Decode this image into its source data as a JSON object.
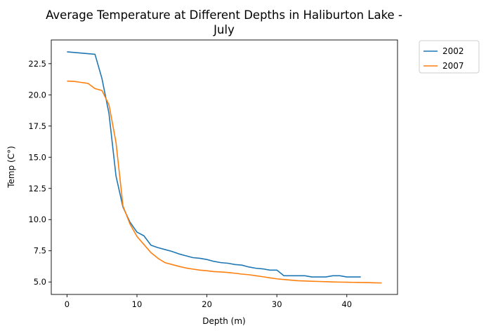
{
  "chart_data": {
    "type": "line",
    "title_line1": "Average Temperature at Different Depths in Haliburton Lake -",
    "title_line2": "July",
    "xlabel": "Depth (m)",
    "ylabel": "Temp (C°)",
    "xlim": [
      -2.25,
      47.25
    ],
    "ylim": [
      4.0,
      24.4
    ],
    "xticks": [
      0,
      10,
      20,
      30,
      40
    ],
    "yticks": [
      5.0,
      7.5,
      10.0,
      12.5,
      15.0,
      17.5,
      20.0,
      22.5
    ],
    "ytick_labels": [
      "5.0",
      "7.5",
      "10.0",
      "12.5",
      "15.0",
      "17.5",
      "20.0",
      "22.5"
    ],
    "legend_position": "outside top-right",
    "series": [
      {
        "name": "2002",
        "color": "#1f77b4",
        "x": [
          0,
          1,
          2,
          3,
          4,
          5,
          6,
          7,
          8,
          9,
          10,
          11,
          12,
          13,
          14,
          15,
          16,
          17,
          18,
          19,
          20,
          21,
          22,
          23,
          24,
          25,
          26,
          27,
          28,
          29,
          30,
          31,
          32,
          33,
          34,
          35,
          36,
          37,
          38,
          39,
          40,
          41,
          42
        ],
        "y": [
          23.45,
          23.4,
          23.35,
          23.3,
          23.25,
          21.3,
          18.5,
          13.5,
          11.0,
          9.8,
          9.0,
          8.7,
          7.95,
          7.75,
          7.6,
          7.45,
          7.25,
          7.1,
          6.95,
          6.9,
          6.8,
          6.65,
          6.55,
          6.5,
          6.4,
          6.35,
          6.2,
          6.1,
          6.05,
          5.95,
          5.95,
          5.5,
          5.5,
          5.5,
          5.5,
          5.4,
          5.4,
          5.4,
          5.5,
          5.5,
          5.4,
          5.4,
          5.4
        ]
      },
      {
        "name": "2007",
        "color": "#ff7f0e",
        "x": [
          0,
          1,
          2,
          3,
          4,
          5,
          6,
          7,
          8,
          9,
          10,
          11,
          12,
          13,
          14,
          15,
          16,
          17,
          18,
          19,
          20,
          21,
          22,
          23,
          24,
          25,
          26,
          27,
          28,
          29,
          30,
          31,
          32,
          33,
          34,
          35,
          36,
          37,
          38,
          39,
          40,
          41,
          42,
          43,
          44,
          45
        ],
        "y": [
          21.1,
          21.08,
          21.0,
          20.92,
          20.5,
          20.35,
          19.2,
          16.2,
          11.1,
          9.65,
          8.65,
          8.0,
          7.35,
          6.9,
          6.55,
          6.4,
          6.25,
          6.12,
          6.03,
          5.95,
          5.9,
          5.83,
          5.8,
          5.76,
          5.7,
          5.63,
          5.58,
          5.5,
          5.42,
          5.33,
          5.25,
          5.2,
          5.15,
          5.1,
          5.08,
          5.06,
          5.04,
          5.02,
          5.0,
          4.99,
          4.98,
          4.97,
          4.96,
          4.95,
          4.93,
          4.92
        ]
      }
    ]
  }
}
